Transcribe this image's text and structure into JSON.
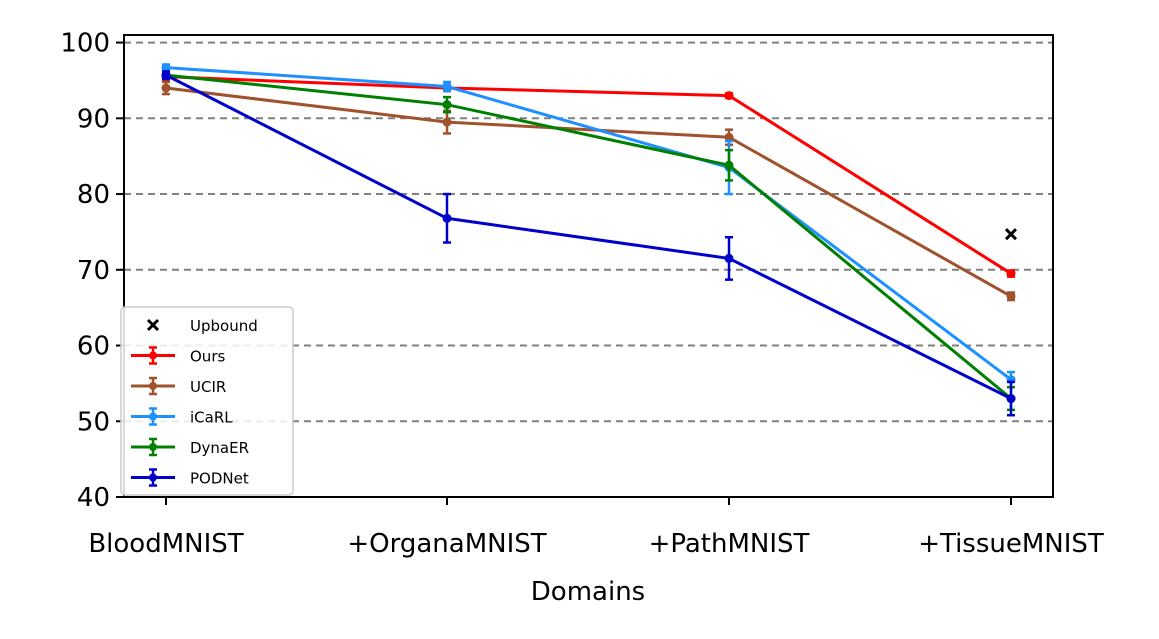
{
  "chart_data": {
    "type": "line",
    "title": "",
    "xlabel": "Domains",
    "ylabel": "",
    "categories": [
      "BloodMNIST",
      "+OrganaMNIST",
      "+PathMNIST",
      "+TissueMNIST"
    ],
    "ylim": [
      40,
      101
    ],
    "yticks": [
      "40",
      "50",
      "60",
      "70",
      "80",
      "90",
      "100"
    ],
    "grid": "horizontal dashed",
    "legend_position": "lower-left",
    "series": [
      {
        "name": "Ours",
        "color": "#ff0000",
        "values": [
          95.5,
          94.0,
          93.0,
          69.5
        ],
        "errors": [
          0.5,
          0.4,
          0.3,
          0.4
        ]
      },
      {
        "name": "UCIR",
        "color": "#a0522d",
        "values": [
          94.0,
          89.5,
          87.5,
          66.5
        ],
        "errors": [
          0.8,
          1.5,
          1.0,
          0.5
        ]
      },
      {
        "name": "iCaRL",
        "color": "#1e90ff",
        "values": [
          96.7,
          94.2,
          83.5,
          55.5
        ],
        "errors": [
          0.4,
          0.6,
          3.5,
          1.0
        ]
      },
      {
        "name": "DynaER",
        "color": "#008000",
        "values": [
          95.7,
          91.8,
          83.8,
          53.0
        ],
        "errors": [
          0.5,
          1.0,
          2.0,
          1.5
        ]
      },
      {
        "name": "PODNet",
        "color": "#0000cd",
        "values": [
          95.7,
          76.8,
          71.5,
          53.0
        ],
        "errors": [
          0.5,
          3.2,
          2.8,
          2.2
        ]
      }
    ],
    "upbound": {
      "name": "Upbound",
      "category": "+TissueMNIST",
      "value": 74.7,
      "marker": "x",
      "color": "#000000"
    }
  }
}
